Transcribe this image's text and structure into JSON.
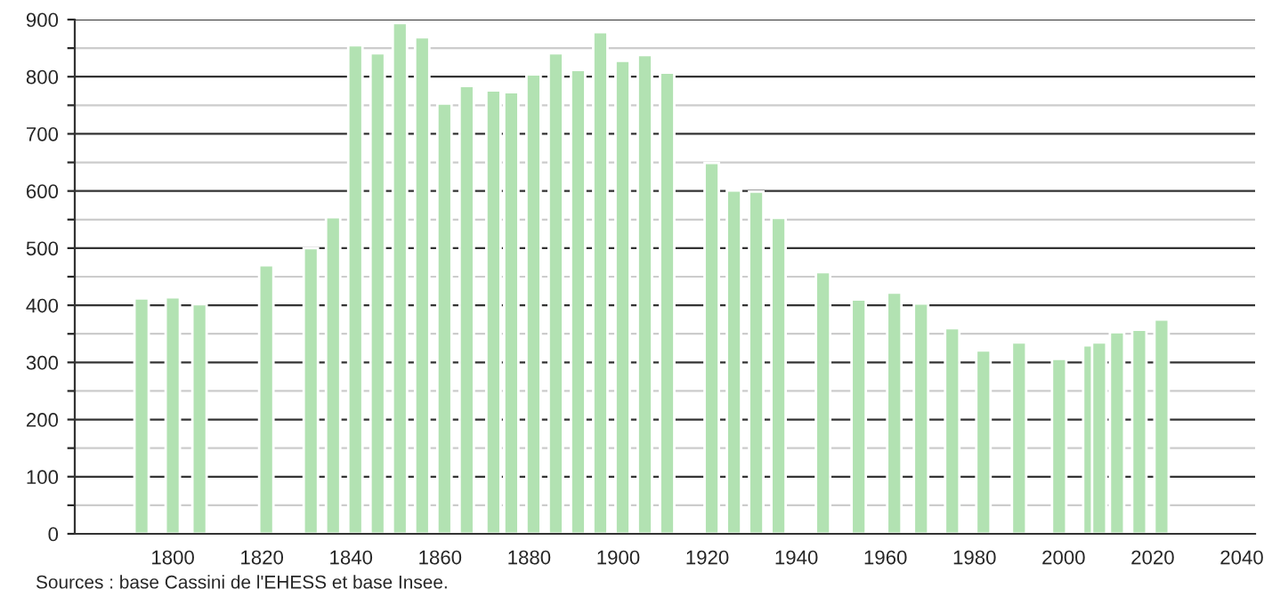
{
  "chart_data": {
    "type": "bar",
    "x": [
      1793,
      1800,
      1806,
      1821,
      1831,
      1836,
      1841,
      1846,
      1851,
      1856,
      1861,
      1866,
      1872,
      1876,
      1881,
      1886,
      1891,
      1896,
      1901,
      1906,
      1911,
      1921,
      1926,
      1931,
      1936,
      1946,
      1954,
      1962,
      1968,
      1975,
      1982,
      1990,
      1999,
      2006,
      2008,
      2012,
      2017,
      2022
    ],
    "values": [
      412,
      414,
      402,
      470,
      500,
      554,
      855,
      841,
      894,
      869,
      753,
      784,
      776,
      773,
      804,
      841,
      812,
      878,
      828,
      838,
      807,
      649,
      601,
      599,
      553,
      458,
      410,
      422,
      403,
      360,
      321,
      335,
      306,
      330,
      335,
      353,
      357,
      375
    ],
    "color": "#b2e2b2",
    "xlim": [
      1778,
      2043
    ],
    "xticks": [
      1800,
      1820,
      1840,
      1860,
      1880,
      1900,
      1920,
      1940,
      1960,
      1980,
      2000,
      2020,
      2040
    ],
    "ylim": [
      0,
      900
    ],
    "yticks": [
      0,
      {
        "value": 50,
        "label": null
      },
      100,
      {
        "value": 150,
        "label": null
      },
      200,
      {
        "value": 250,
        "label": null
      },
      300,
      {
        "value": 350,
        "label": null
      },
      400,
      {
        "value": 450,
        "label": null
      },
      500,
      {
        "value": 550,
        "label": null
      },
      600,
      {
        "value": 650,
        "label": null
      },
      700,
      {
        "value": 750,
        "label": null
      },
      800,
      {
        "value": 850,
        "label": null
      },
      900
    ],
    "grid": "y",
    "annotations": [
      "Sources : base Cassini de l'EHESS et base Insee."
    ]
  }
}
